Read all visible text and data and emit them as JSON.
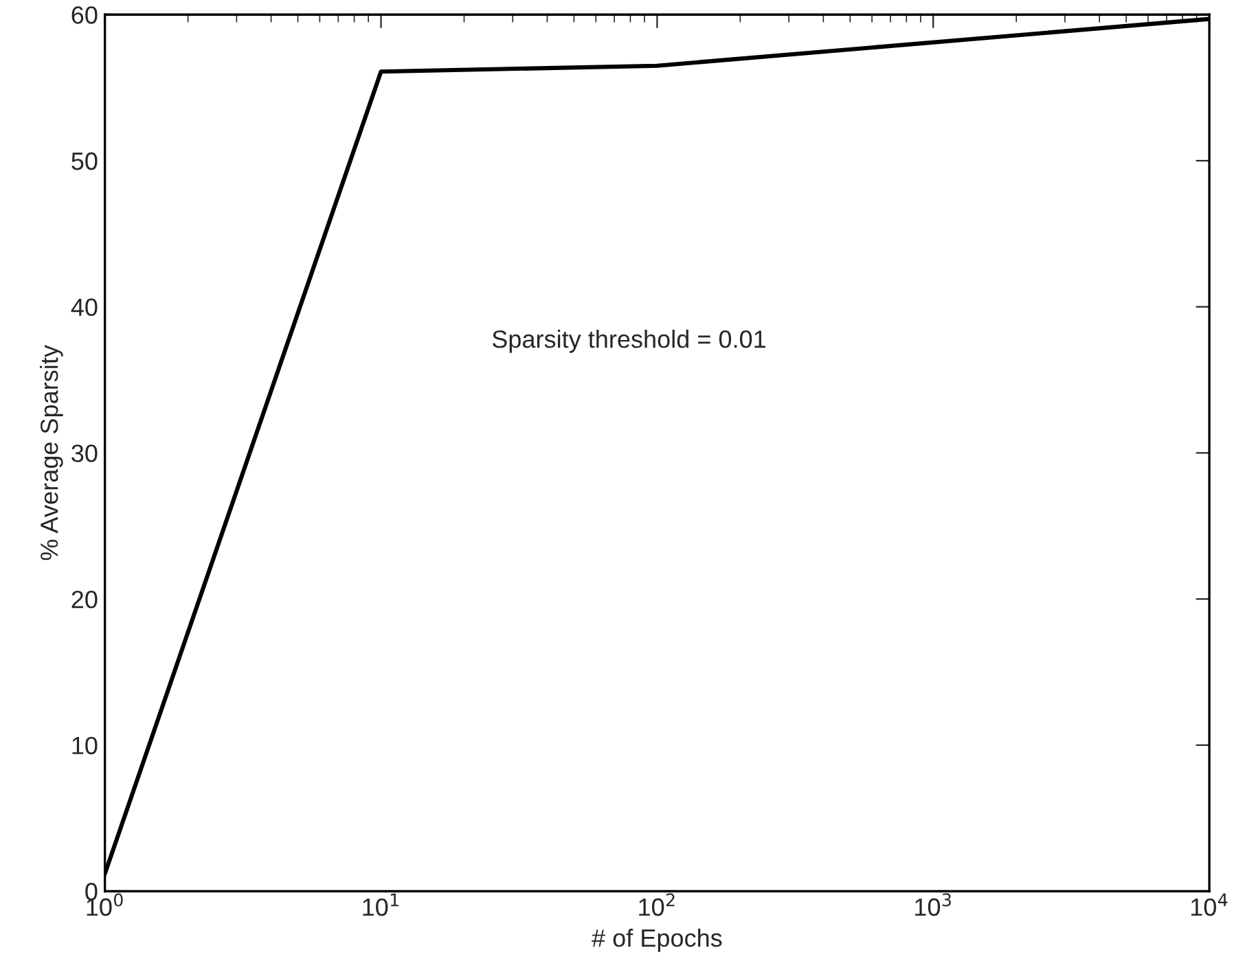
{
  "chart_data": {
    "type": "line",
    "xlabel": "# of Epochs",
    "ylabel": "% Average Sparsity",
    "x": [
      1,
      10,
      100,
      10000
    ],
    "series": [
      {
        "color": "#000000",
        "values": [
          1.2,
          56.1,
          56.5,
          59.7
        ]
      }
    ],
    "log": "x",
    "xlim": [
      1,
      10000
    ],
    "ylim": [
      0,
      60
    ],
    "xticks": [
      {
        "value": 1,
        "label": "10$^{0}$"
      },
      {
        "value": 10,
        "label": "10$^{1}$"
      },
      {
        "value": 100,
        "label": "10$^{2}$"
      },
      {
        "value": 1000,
        "label": "10$^{3}$"
      },
      {
        "value": 10000,
        "label": "10$^{4}$"
      }
    ],
    "yticks": [
      0,
      10,
      20,
      30,
      40,
      50,
      60
    ],
    "annotations": [
      "Sparsity threshold = 0.01"
    ],
    "grid": false,
    "legend": false,
    "marker": "none",
    "line_style": "solid"
  }
}
